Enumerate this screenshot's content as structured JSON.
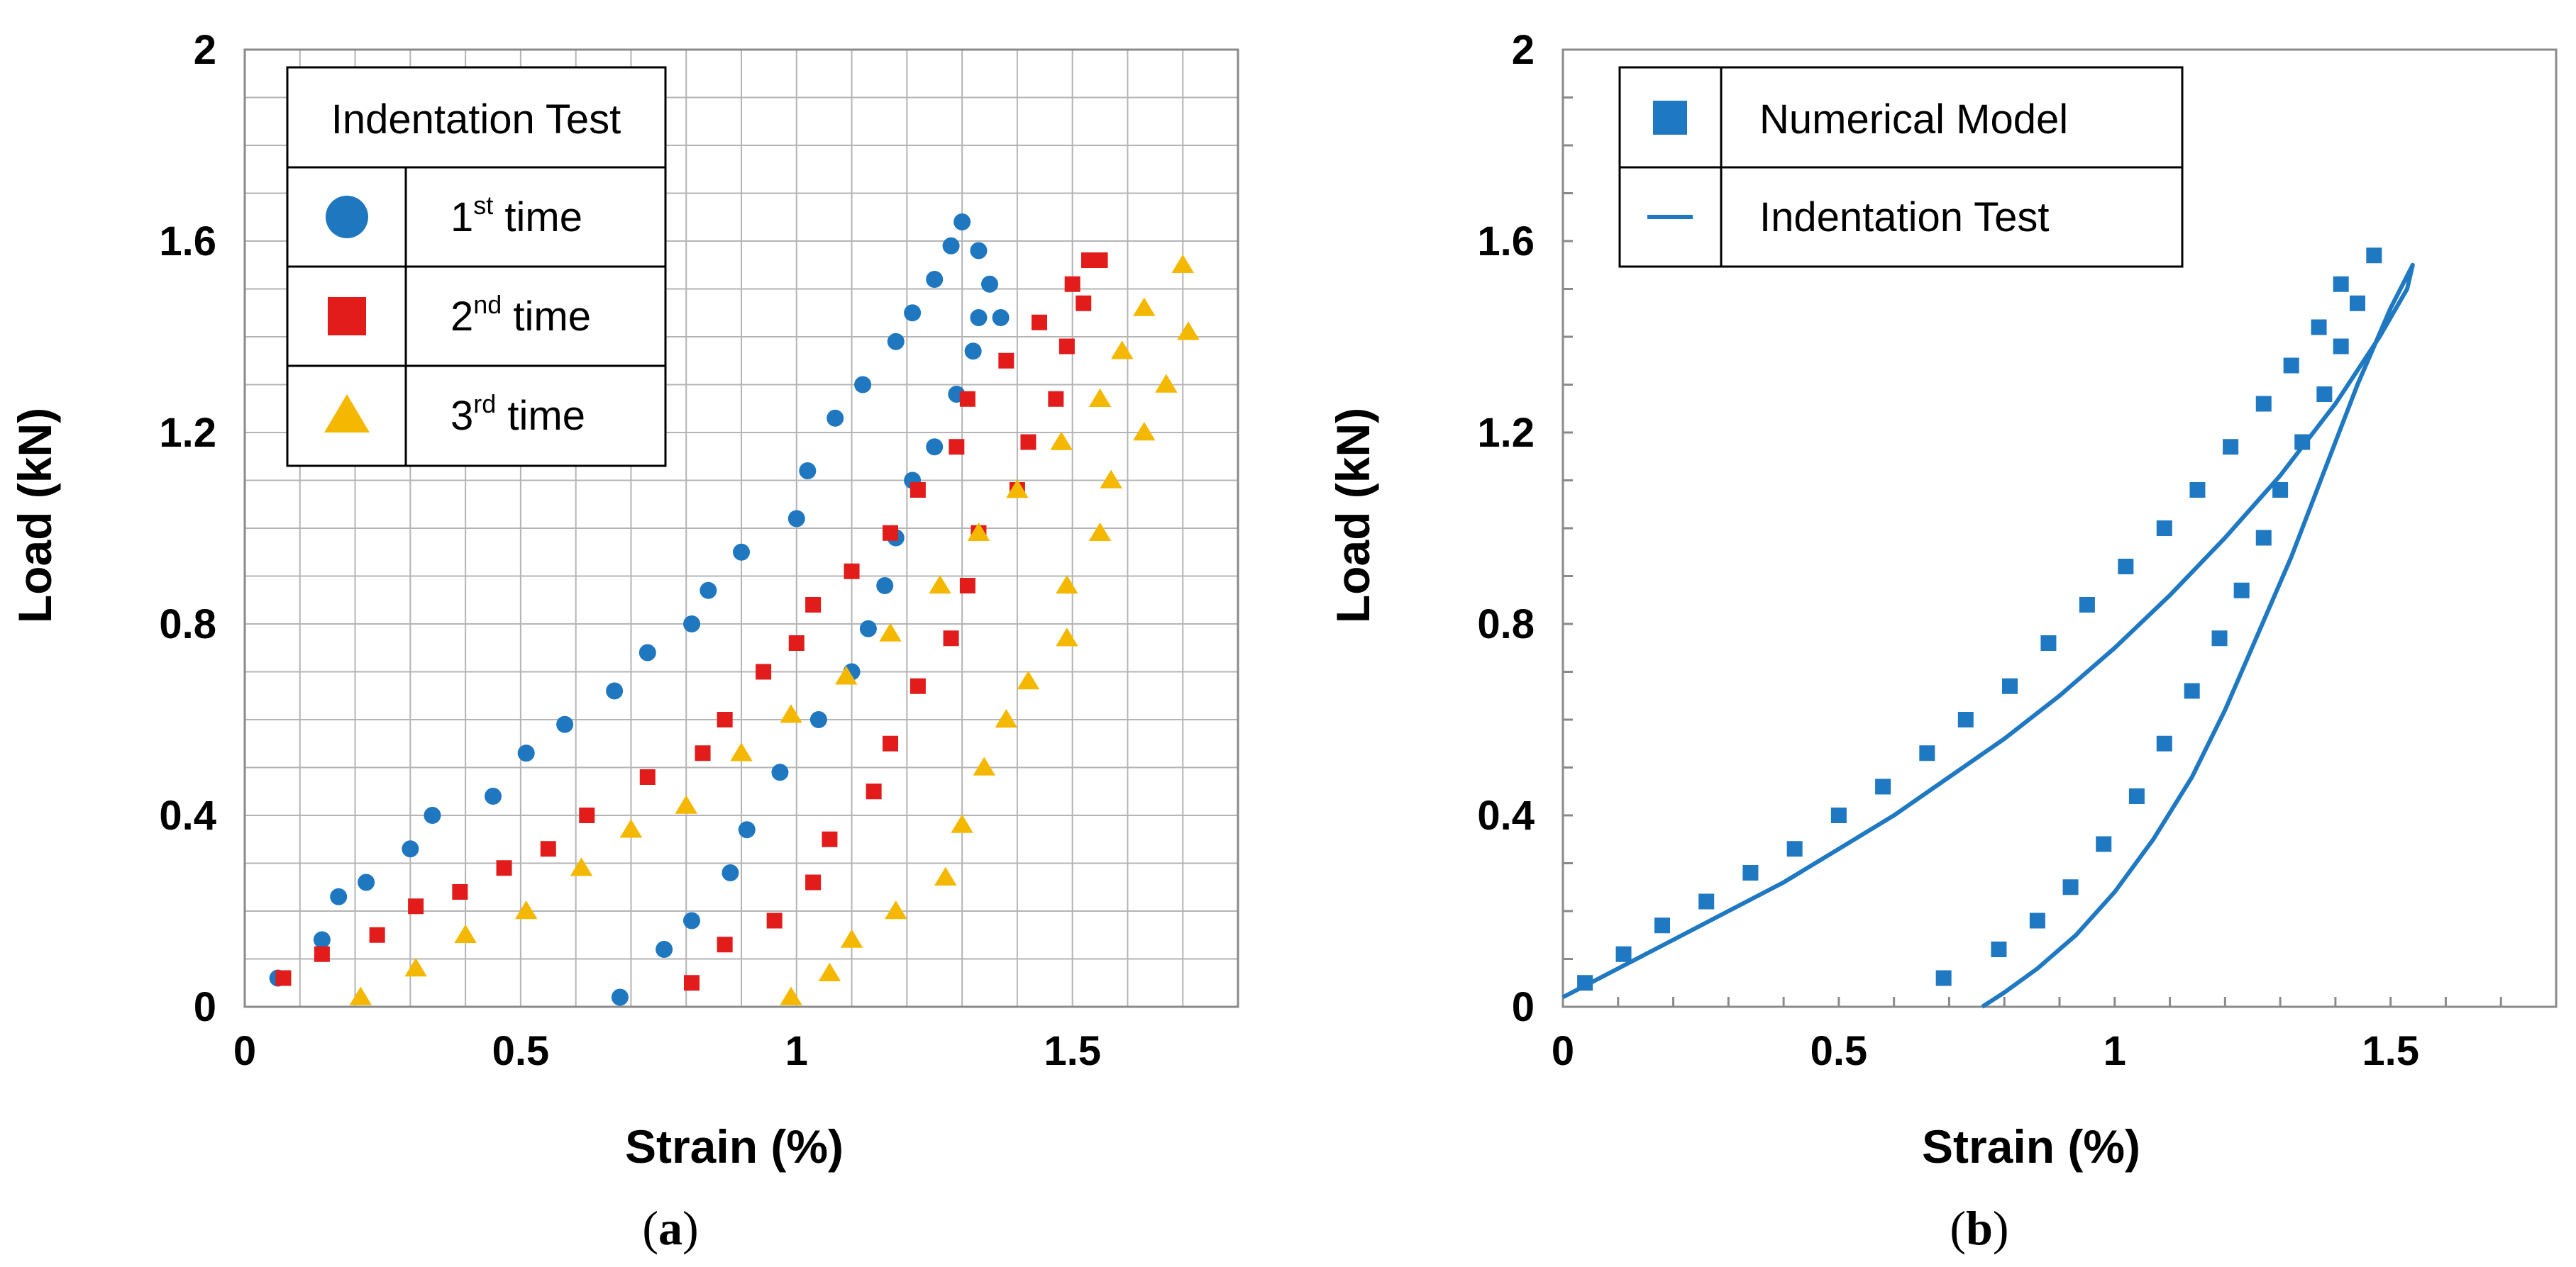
{
  "chart_data": [
    {
      "panel_label": "a",
      "type": "scatter",
      "xlabel": "Strain (%)",
      "ylabel": "Load (kN)",
      "xlim": [
        0,
        1.8
      ],
      "ylim": [
        0,
        2
      ],
      "xticks": [
        "0",
        "0.5",
        "1",
        "1.5"
      ],
      "yticks": [
        "0",
        "0.4",
        "0.8",
        "1.2",
        "1.6",
        "2"
      ],
      "grid": true,
      "legend_title": "Indentation Test",
      "legend_position": "top-left",
      "series": [
        {
          "label_base": "1",
          "label_sup": "st",
          "label_rest": " time",
          "color": "#1f77c0",
          "marker": "circle",
          "x": [
            0.06,
            0.14,
            0.17,
            0.22,
            0.3,
            0.34,
            0.45,
            0.51,
            0.58,
            0.67,
            0.73,
            0.81,
            0.84,
            0.9,
            1.0,
            1.02,
            1.07,
            1.12,
            1.18,
            1.21,
            1.25,
            1.28,
            1.3,
            1.33,
            1.35,
            1.37,
            0.68,
            0.76,
            0.81,
            0.88,
            0.91,
            0.97,
            1.04,
            1.1,
            1.13,
            1.16,
            1.18,
            1.21,
            1.25,
            1.29,
            1.32,
            1.33
          ],
          "y": [
            0.06,
            0.14,
            0.23,
            0.26,
            0.33,
            0.4,
            0.44,
            0.53,
            0.59,
            0.66,
            0.74,
            0.8,
            0.87,
            0.95,
            1.02,
            1.12,
            1.23,
            1.3,
            1.39,
            1.45,
            1.52,
            1.59,
            1.64,
            1.58,
            1.51,
            1.44,
            0.02,
            0.12,
            0.18,
            0.28,
            0.37,
            0.49,
            0.6,
            0.7,
            0.79,
            0.88,
            0.98,
            1.1,
            1.17,
            1.28,
            1.37,
            1.44
          ]
        },
        {
          "label_base": "2",
          "label_sup": "nd",
          "label_rest": " time",
          "color": "#e21b1b",
          "marker": "square",
          "x": [
            0.07,
            0.14,
            0.24,
            0.31,
            0.39,
            0.47,
            0.55,
            0.62,
            0.73,
            0.83,
            0.87,
            0.94,
            1.0,
            1.03,
            1.1,
            1.17,
            1.22,
            1.29,
            1.31,
            1.38,
            1.44,
            1.5,
            1.53,
            1.55,
            0.81,
            0.87,
            0.96,
            1.03,
            1.06,
            1.14,
            1.17,
            1.22,
            1.28,
            1.31,
            1.33,
            1.4,
            1.42,
            1.47,
            1.49,
            1.52
          ],
          "y": [
            0.06,
            0.11,
            0.15,
            0.21,
            0.24,
            0.29,
            0.33,
            0.4,
            0.48,
            0.53,
            0.6,
            0.7,
            0.76,
            0.84,
            0.91,
            0.99,
            1.08,
            1.17,
            1.27,
            1.35,
            1.43,
            1.51,
            1.56,
            1.56,
            0.05,
            0.13,
            0.18,
            0.26,
            0.35,
            0.45,
            0.55,
            0.67,
            0.77,
            0.88,
            0.99,
            1.08,
            1.18,
            1.27,
            1.38,
            1.47
          ],
          "": ""
        },
        {
          "label_base": "3",
          "label_sup": "rd",
          "label_rest": " time",
          "color": "#f5b800",
          "marker": "triangle",
          "x": [
            0.21,
            0.31,
            0.4,
            0.51,
            0.61,
            0.7,
            0.8,
            0.9,
            0.99,
            1.09,
            1.17,
            1.26,
            1.33,
            1.4,
            1.48,
            1.55,
            1.63,
            1.7,
            0.99,
            1.06,
            1.1,
            1.18,
            1.27,
            1.3,
            1.34,
            1.38,
            1.42,
            1.49,
            1.49,
            1.55,
            1.57,
            1.59,
            1.63,
            1.67,
            1.71
          ],
          "y": [
            0.02,
            0.08,
            0.15,
            0.2,
            0.29,
            0.37,
            0.42,
            0.53,
            0.61,
            0.69,
            0.78,
            0.88,
            0.99,
            1.08,
            1.18,
            1.27,
            1.46,
            1.55,
            0.02,
            0.07,
            0.14,
            0.2,
            0.27,
            0.38,
            0.5,
            0.6,
            0.68,
            0.77,
            0.88,
            0.99,
            1.1,
            1.37,
            1.2,
            1.3,
            1.41
          ]
        }
      ]
    },
    {
      "panel_label": "b",
      "type": "scatter",
      "xlabel": "Strain (%)",
      "ylabel": "Load (kN)",
      "xlim": [
        0,
        1.8
      ],
      "ylim": [
        0,
        2
      ],
      "xticks": [
        "0",
        "0.5",
        "1",
        "1.5"
      ],
      "yticks": [
        "0",
        "0.4",
        "0.8",
        "1.2",
        "1.6",
        "2"
      ],
      "grid": false,
      "legend_position": "top-left",
      "series": [
        {
          "name": "Numerical Model",
          "color": "#1e78c2",
          "marker": "square",
          "x": [
            0.04,
            0.11,
            0.18,
            0.26,
            0.34,
            0.42,
            0.5,
            0.58,
            0.66,
            0.73,
            0.81,
            0.88,
            0.95,
            1.02,
            1.09,
            1.15,
            1.21,
            1.27,
            1.32,
            1.37,
            1.41,
            1.44,
            1.47,
            0.69,
            0.79,
            0.86,
            0.92,
            0.98,
            1.04,
            1.09,
            1.14,
            1.19,
            1.23,
            1.27,
            1.3,
            1.34,
            1.38,
            1.41
          ],
          "y": [
            0.05,
            0.11,
            0.17,
            0.22,
            0.28,
            0.33,
            0.4,
            0.46,
            0.53,
            0.6,
            0.67,
            0.76,
            0.84,
            0.92,
            1.0,
            1.08,
            1.17,
            1.26,
            1.34,
            1.42,
            1.51,
            1.47,
            1.57,
            0.06,
            0.12,
            0.18,
            0.25,
            0.34,
            0.44,
            0.55,
            0.66,
            0.77,
            0.87,
            0.98,
            1.08,
            1.18,
            1.28,
            1.38
          ]
        },
        {
          "name": "Indentation Test",
          "color": "#1e78c2",
          "marker": "line",
          "x": [
            0.0,
            0.1,
            0.2,
            0.3,
            0.4,
            0.5,
            0.6,
            0.7,
            0.8,
            0.9,
            1.0,
            1.1,
            1.2,
            1.3,
            1.4,
            1.48,
            1.53,
            1.54,
            1.5,
            1.44,
            1.38,
            1.32,
            1.26,
            1.2,
            1.14,
            1.07,
            1.0,
            0.93,
            0.86,
            0.8,
            0.76
          ],
          "y": [
            0.02,
            0.08,
            0.14,
            0.2,
            0.26,
            0.33,
            0.4,
            0.48,
            0.56,
            0.65,
            0.75,
            0.86,
            0.98,
            1.11,
            1.26,
            1.4,
            1.5,
            1.55,
            1.46,
            1.3,
            1.12,
            0.94,
            0.78,
            0.62,
            0.48,
            0.35,
            0.24,
            0.15,
            0.08,
            0.03,
            0.0
          ]
        }
      ]
    }
  ]
}
